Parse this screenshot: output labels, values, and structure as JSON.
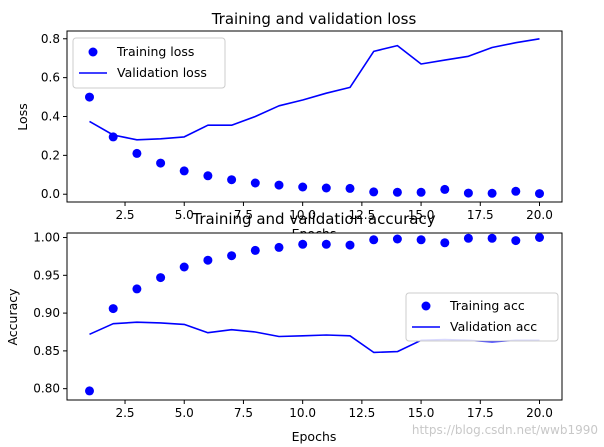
{
  "chart_data": [
    {
      "type": "line",
      "title": "Training and validation loss",
      "xlabel": "Epochs",
      "ylabel": "Loss",
      "xlim": [
        0.05,
        20.95
      ],
      "ylim": [
        -0.04,
        0.84
      ],
      "xticks": [
        2.5,
        5.0,
        7.5,
        10.0,
        12.5,
        15.0,
        17.5,
        20.0
      ],
      "xtick_labels": [
        "2.5",
        "5.0",
        "7.5",
        "10.0",
        "12.5",
        "15.0",
        "17.5",
        "20.0"
      ],
      "yticks": [
        0.0,
        0.2,
        0.4,
        0.6,
        0.8
      ],
      "ytick_labels": [
        "0.0",
        "0.2",
        "0.4",
        "0.6",
        "0.8"
      ],
      "legend_position": "top-left",
      "grid": false,
      "x": [
        1,
        2,
        3,
        4,
        5,
        6,
        7,
        8,
        9,
        10,
        11,
        12,
        13,
        14,
        15,
        16,
        17,
        18,
        19,
        20
      ],
      "series": [
        {
          "name": "Training loss",
          "style": "markers",
          "color": "#0000ff",
          "values": [
            0.5,
            0.295,
            0.21,
            0.16,
            0.12,
            0.095,
            0.075,
            0.058,
            0.047,
            0.037,
            0.032,
            0.03,
            0.012,
            0.01,
            0.01,
            0.025,
            0.006,
            0.005,
            0.015,
            0.003
          ]
        },
        {
          "name": "Validation loss",
          "style": "line",
          "color": "#0000ff",
          "values": [
            0.375,
            0.305,
            0.28,
            0.285,
            0.295,
            0.355,
            0.355,
            0.4,
            0.455,
            0.485,
            0.52,
            0.55,
            0.735,
            0.765,
            0.67,
            0.69,
            0.71,
            0.755,
            0.78,
            0.8
          ]
        }
      ]
    },
    {
      "type": "line",
      "title": "Training and validation accuracy",
      "xlabel": "Epochs",
      "ylabel": "Accuracy",
      "xlim": [
        0.05,
        20.95
      ],
      "ylim": [
        0.785,
        1.006
      ],
      "xticks": [
        2.5,
        5.0,
        7.5,
        10.0,
        12.5,
        15.0,
        17.5,
        20.0
      ],
      "xtick_labels": [
        "2.5",
        "5.0",
        "7.5",
        "10.0",
        "12.5",
        "15.0",
        "17.5",
        "20.0"
      ],
      "yticks": [
        0.8,
        0.85,
        0.9,
        0.95,
        1.0
      ],
      "ytick_labels": [
        "0.80",
        "0.85",
        "0.90",
        "0.95",
        "1.00"
      ],
      "legend_position": "center-right",
      "grid": false,
      "x": [
        1,
        2,
        3,
        4,
        5,
        6,
        7,
        8,
        9,
        10,
        11,
        12,
        13,
        14,
        15,
        16,
        17,
        18,
        19,
        20
      ],
      "series": [
        {
          "name": "Training acc",
          "style": "markers",
          "color": "#0000ff",
          "values": [
            0.797,
            0.906,
            0.932,
            0.947,
            0.961,
            0.97,
            0.976,
            0.983,
            0.987,
            0.991,
            0.991,
            0.99,
            0.997,
            0.998,
            0.997,
            0.993,
            0.999,
            0.999,
            0.996,
            1.0
          ]
        },
        {
          "name": "Validation acc",
          "style": "line",
          "color": "#0000ff",
          "values": [
            0.872,
            0.886,
            0.888,
            0.887,
            0.885,
            0.874,
            0.878,
            0.875,
            0.869,
            0.87,
            0.871,
            0.87,
            0.848,
            0.849,
            0.864,
            0.865,
            0.864,
            0.862,
            0.864,
            0.864
          ]
        }
      ]
    }
  ],
  "watermark": "https://blog.csdn.net/wwb1990"
}
